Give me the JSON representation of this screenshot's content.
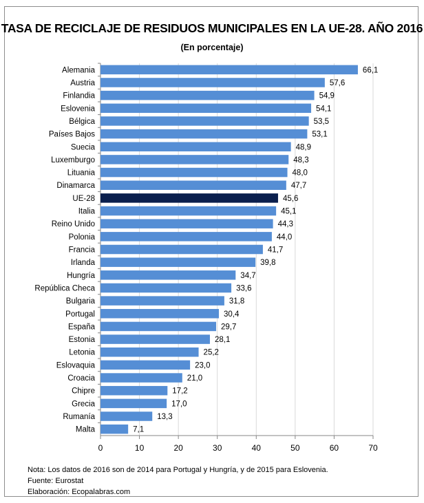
{
  "chart_data": {
    "type": "bar",
    "orientation": "horizontal",
    "title": "TASA DE RECICLAJE DE RESIDUOS MUNICIPALES EN LA UE-28. AÑO 2016",
    "subtitle": "(En porcentaje)",
    "categories": [
      "Alemania",
      "Austria",
      "Finlandia",
      "Eslovenia",
      "Bélgica",
      "Países Bajos",
      "Suecia",
      "Luxemburgo",
      "Lituania",
      "Dinamarca",
      "UE-28",
      "Italia",
      "Reino Unido",
      "Polonia",
      "Francia",
      "Irlanda",
      "Hungría",
      "República Checa",
      "Bulgaria",
      "Portugal",
      "España",
      "Estonia",
      "Letonia",
      "Eslovaquia",
      "Croacia",
      "Chipre",
      "Grecia",
      "Rumanía",
      "Malta"
    ],
    "values": [
      66.1,
      57.6,
      54.9,
      54.1,
      53.5,
      53.1,
      48.9,
      48.3,
      48.0,
      47.7,
      45.6,
      45.1,
      44.3,
      44.0,
      41.7,
      39.8,
      34.7,
      33.6,
      31.8,
      30.4,
      29.7,
      28.1,
      25.2,
      23.0,
      21.0,
      17.2,
      17.0,
      13.3,
      7.1
    ],
    "data_labels": [
      "66,1",
      "57,6",
      "54,9",
      "54,1",
      "53,5",
      "53,1",
      "48,9",
      "48,3",
      "48,0",
      "47,7",
      "45,6",
      "45,1",
      "44,3",
      "44,0",
      "41,7",
      "39,8",
      "34,7",
      "33,6",
      "31,8",
      "30,4",
      "29,7",
      "28,1",
      "25,2",
      "23,0",
      "21,0",
      "17,2",
      "17,0",
      "13,3",
      "7,1"
    ],
    "highlight_category": "UE-28",
    "xlim": [
      0,
      70
    ],
    "xticks": [
      "0",
      "10",
      "20",
      "30",
      "40",
      "50",
      "60",
      "70"
    ],
    "xlabel": "",
    "ylabel": "",
    "grid": "vertical",
    "colors": {
      "bar": "#558ed5",
      "highlight": "#0a1f4d",
      "grid": "#d9d9d9",
      "axis": "#868686"
    }
  },
  "notes": {
    "note": "Nota: Los datos de 2016 son de 2014 para Portugal y Hungría, y de 2015 para Eslovenia.",
    "source": "Fuente: Eurostat",
    "author": "Elaboración: Ecopalabras.com"
  }
}
